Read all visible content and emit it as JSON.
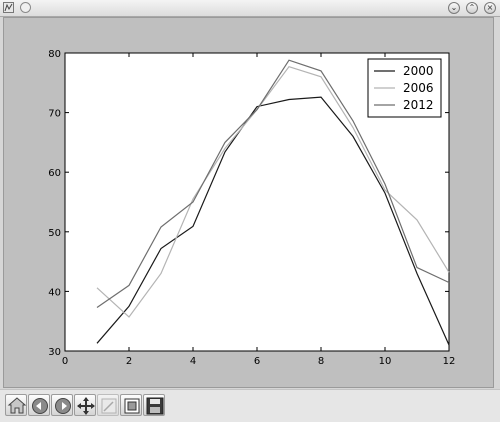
{
  "window": {
    "icons": {
      "app": "plot-app-icon",
      "menu": "window-menu-icon",
      "minimize": "minimize-icon",
      "maximize": "maximize-icon",
      "close": "close-icon"
    }
  },
  "toolbar": {
    "tools": [
      {
        "name": "home-button",
        "icon": "home-icon"
      },
      {
        "name": "back-button",
        "icon": "back-arrow-icon"
      },
      {
        "name": "forward-button",
        "icon": "forward-arrow-icon"
      },
      {
        "name": "pan-button",
        "icon": "move-arrows-icon"
      },
      {
        "name": "zoom-button",
        "icon": "zoom-rect-icon"
      },
      {
        "name": "configure-subplots-button",
        "icon": "subplots-icon"
      },
      {
        "name": "save-button",
        "icon": "floppy-disk-icon"
      }
    ]
  },
  "chart_data": {
    "type": "line",
    "title": "",
    "xlabel": "",
    "ylabel": "",
    "xlim": [
      0,
      12
    ],
    "ylim": [
      30,
      80
    ],
    "xticks": [
      "0",
      "2",
      "4",
      "6",
      "8",
      "10",
      "12"
    ],
    "yticks": [
      "30",
      "40",
      "50",
      "60",
      "70",
      "80"
    ],
    "grid": false,
    "legend_position": "top-right",
    "x": [
      1,
      2,
      3,
      4,
      5,
      6,
      7,
      8,
      9,
      10,
      11,
      12
    ],
    "series": [
      {
        "name": "2000",
        "color": "#1a1a1a",
        "values": [
          31.3,
          37.5,
          47.2,
          50.9,
          63.4,
          71.0,
          72.2,
          72.6,
          66.0,
          56.5,
          43.0,
          31.0
        ]
      },
      {
        "name": "2006",
        "color": "#b4b4b4",
        "values": [
          40.6,
          35.7,
          43.0,
          55.5,
          64.0,
          70.5,
          77.7,
          76.0,
          67.5,
          57.0,
          52.0,
          43.2
        ]
      },
      {
        "name": "2012",
        "color": "#6e6e6e",
        "values": [
          37.3,
          41.0,
          50.8,
          55.0,
          65.0,
          70.5,
          78.8,
          77.0,
          68.6,
          58.0,
          44.0,
          41.5
        ]
      }
    ]
  }
}
